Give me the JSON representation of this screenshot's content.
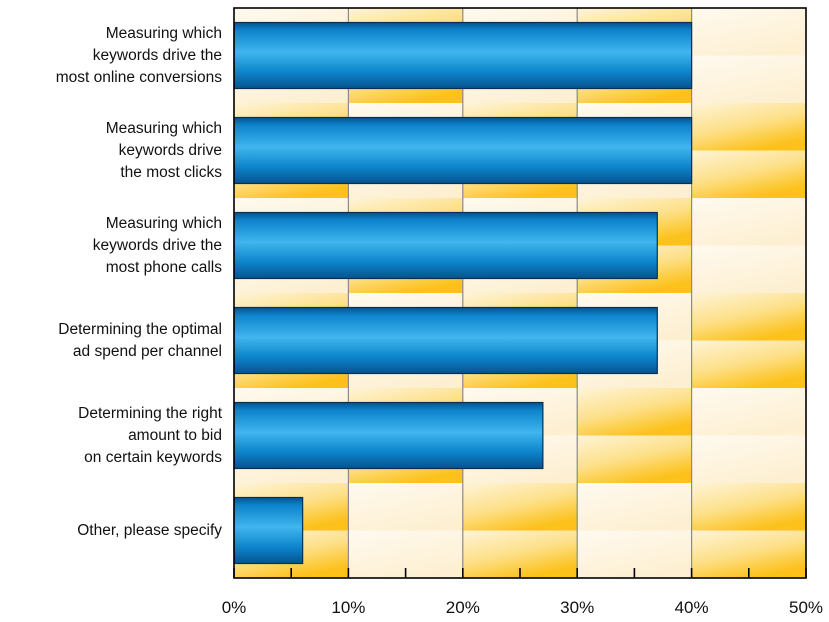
{
  "chart_data": {
    "type": "bar",
    "orientation": "horizontal",
    "categories": [
      "Measuring which\nkeywords drive the\nmost online conversions",
      "Measuring which\nkeywords drive\nthe most clicks",
      "Measuring which\nkeywords drive the\nmost phone calls",
      "Determining the optimal\nad spend per channel",
      "Determining the right\namount to bid\non certain keywords",
      "Other, please specify"
    ],
    "values": [
      40,
      40,
      37,
      37,
      27,
      6
    ],
    "xlim": [
      0,
      50
    ],
    "xticks": [
      "0%",
      "10%",
      "20%",
      "30%",
      "40%",
      "50%"
    ],
    "title": "",
    "xlabel": "",
    "ylabel": "",
    "grid": true,
    "colors": {
      "bar_light": "#3fb6ee",
      "bar_mid": "#0d84cc",
      "bar_dark": "#06538f",
      "bg_gold": "#fcc21b",
      "bg_cream": "#fdf0d2",
      "grid": "#8a8a8a",
      "axis": "#000000"
    }
  }
}
